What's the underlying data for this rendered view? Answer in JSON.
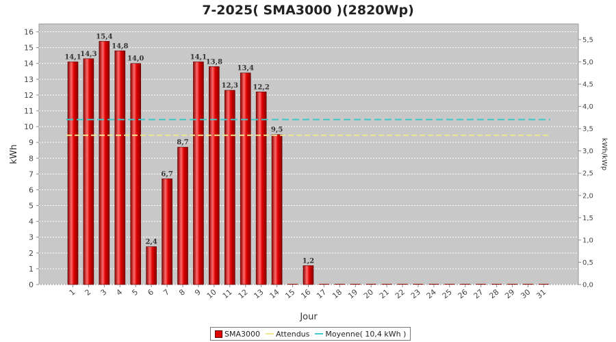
{
  "colors": {
    "bar": "#dd0000",
    "bar_dark": "#8b0000",
    "bar_light": "#ff6a6a",
    "plot_bg": "#c8c8c8",
    "grid": "#ffffff",
    "expected": "#f0e68c",
    "average": "#40c8c8"
  },
  "chart_data": {
    "type": "bar",
    "title": "7-2025( SMA3000 )(2820Wp)",
    "xlabel": "Jour",
    "ylabel": "kWh",
    "y2label": "kWh/kWp",
    "ylim": [
      0,
      16.5
    ],
    "y2lim": [
      0,
      5.851
    ],
    "yticks": [
      "0",
      "1",
      "2",
      "3",
      "4",
      "5",
      "6",
      "7",
      "8",
      "9",
      "10",
      "11",
      "12",
      "13",
      "14",
      "15",
      "16"
    ],
    "y2ticks": [
      "0,0",
      "0,5",
      "1,0",
      "1,5",
      "2,0",
      "2,5",
      "3,0",
      "3,5",
      "4,0",
      "4,5",
      "5,0",
      "5,5"
    ],
    "grid": true,
    "legend_position": "bottom",
    "categories": [
      "1",
      "2",
      "3",
      "4",
      "5",
      "6",
      "7",
      "8",
      "9",
      "10",
      "11",
      "12",
      "13",
      "14",
      "15",
      "16",
      "17",
      "18",
      "19",
      "20",
      "21",
      "22",
      "23",
      "24",
      "25",
      "26",
      "27",
      "28",
      "29",
      "30",
      "31"
    ],
    "series": [
      {
        "name": "SMA3000",
        "values": [
          14.1,
          14.3,
          15.4,
          14.8,
          14.0,
          2.4,
          6.7,
          8.7,
          14.1,
          13.8,
          12.3,
          13.4,
          12.2,
          9.5,
          0,
          1.2,
          0,
          0,
          0,
          0,
          0,
          0,
          0,
          0,
          0,
          0,
          0,
          0,
          0,
          0,
          0
        ],
        "labels": [
          "14,1",
          "14,3",
          "15,4",
          "14,8",
          "14,0",
          "2,4",
          "6,7",
          "8,7",
          "14,1",
          "13,8",
          "12,3",
          "13,4",
          "12,2",
          "9,5",
          "",
          "1,2",
          "",
          "",
          "",
          "",
          "",
          "",
          "",
          "",
          "",
          "",
          "",
          "",
          "",
          "",
          ""
        ]
      }
    ],
    "lines": [
      {
        "name": "Attendus",
        "value": 9.45,
        "style": "dashed"
      },
      {
        "name": "Moyenne( 10,4 kWh )",
        "value": 10.45,
        "style": "dashed"
      }
    ]
  }
}
